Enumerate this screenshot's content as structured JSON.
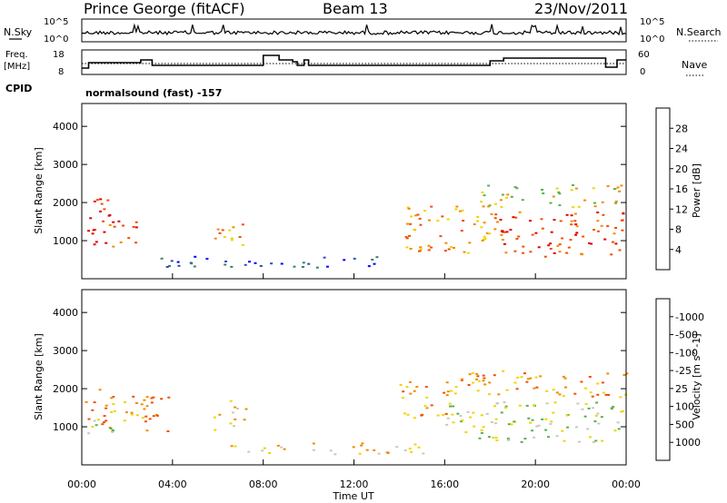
{
  "header": {
    "station": "Prince George (fitACF)",
    "beam": "Beam 13",
    "date": "23/Nov/2011"
  },
  "left_labels": {
    "nsky": "N.Sky",
    "freq_line1": "Freq.",
    "freq_line2": "[MHz]",
    "cpid": "CPID"
  },
  "right_labels": {
    "nsearch": "N.Search",
    "nave": "Nave"
  },
  "noise_panel": {
    "left_ticks": [
      "10^5",
      "10^0"
    ],
    "right_ticks": [
      "10^5",
      "10^0"
    ]
  },
  "freq_panel": {
    "left_ticks": [
      "18",
      "8"
    ],
    "right_ticks": [
      "60",
      "0"
    ]
  },
  "cpid_text": "normalsound (fast) -157",
  "chart_data": [
    {
      "type": "heatmap",
      "title": "Power",
      "xlabel": "Time UT",
      "ylabel": "Slant Range [km]",
      "xlim": [
        "00:00",
        "24:00"
      ],
      "ylim": [
        0,
        4600
      ],
      "y_ticks": [
        1000,
        2000,
        3000,
        4000
      ],
      "x_tick_labels": [
        "00:00",
        "04:00",
        "08:00",
        "12:00",
        "16:00",
        "20:00",
        "00:00"
      ],
      "colorbar": {
        "label": "Power [dB]",
        "ticks": [
          "4",
          "8",
          "12",
          "16",
          "20",
          "24",
          "28"
        ],
        "colors": [
          "#0000ff",
          "#2d4fb8",
          "#3b7d6e",
          "#57b04c",
          "#f0d400",
          "#f08c00",
          "#f05000",
          "#e00000"
        ]
      },
      "regions": [
        {
          "t": [
            0.0,
            1.2
          ],
          "r": [
            800,
            2200
          ],
          "level": 7
        },
        {
          "t": [
            1.0,
            2.4
          ],
          "r": [
            800,
            1600
          ],
          "level": 6
        },
        {
          "t": [
            5.8,
            7.2
          ],
          "r": [
            900,
            1700
          ],
          "level": 5
        },
        {
          "t": [
            14.2,
            18.0
          ],
          "r": [
            700,
            2000
          ],
          "level": 5
        },
        {
          "t": [
            18.0,
            24.0
          ],
          "r": [
            600,
            1800
          ],
          "level": 6
        },
        {
          "t": [
            17.5,
            24.0
          ],
          "r": [
            1900,
            2500
          ],
          "level": 4
        },
        {
          "t": [
            3.0,
            13.0
          ],
          "r": [
            300,
            600
          ],
          "level": 1
        }
      ]
    },
    {
      "type": "heatmap",
      "title": "Velocity",
      "xlabel": "Time UT",
      "ylabel": "Slant Range [km]",
      "xlim": [
        "00:00",
        "24:00"
      ],
      "ylim": [
        0,
        4600
      ],
      "y_ticks": [
        1000,
        2000,
        3000,
        4000
      ],
      "x_tick_labels": [
        "00:00",
        "04:00",
        "08:00",
        "12:00",
        "16:00",
        "20:00",
        "00:00"
      ],
      "colorbar": {
        "label": "Velocity [m s^-1]",
        "ticks": [
          "1000",
          "500",
          "100",
          "25",
          "-25",
          "-100",
          "-500",
          "-1000"
        ],
        "colors": [
          "#0000ff",
          "#2d4fb8",
          "#3b7d6e",
          "#57b04c",
          "#c8c8c0",
          "#f0d400",
          "#f08c00",
          "#f05000",
          "#e00000"
        ]
      },
      "regions": [
        {
          "t": [
            0.0,
            3.8
          ],
          "r": [
            900,
            2000
          ],
          "level": 6
        },
        {
          "t": [
            0.0,
            1.5
          ],
          "r": [
            800,
            1200
          ],
          "level": 4
        },
        {
          "t": [
            14.0,
            16.5
          ],
          "r": [
            1200,
            2200
          ],
          "level": 6
        },
        {
          "t": [
            16.0,
            24.0
          ],
          "r": [
            600,
            1700
          ],
          "level": 4
        },
        {
          "t": [
            16.5,
            24.0
          ],
          "r": [
            1800,
            2500
          ],
          "level": 6
        },
        {
          "t": [
            5.8,
            7.2
          ],
          "r": [
            900,
            1700
          ],
          "level": 5
        },
        {
          "t": [
            6.0,
            15.0
          ],
          "r": [
            300,
            600
          ],
          "level": 5
        }
      ]
    }
  ],
  "x_axis": {
    "ticks": [
      "00:00",
      "04:00",
      "08:00",
      "12:00",
      "16:00",
      "20:00",
      "00:00"
    ],
    "label": "Time UT"
  },
  "colors": {
    "power_scale": [
      "#0000ff",
      "#2d4fb8",
      "#3b7d6e",
      "#57b04c",
      "#f0d400",
      "#f08c00",
      "#f05000",
      "#e00000"
    ],
    "velocity_scale": [
      "#0000ff",
      "#2d4fb8",
      "#3b7d6e",
      "#57b04c",
      "#c8c8c0",
      "#f0d400",
      "#f08c00",
      "#f05000",
      "#e00000"
    ]
  }
}
